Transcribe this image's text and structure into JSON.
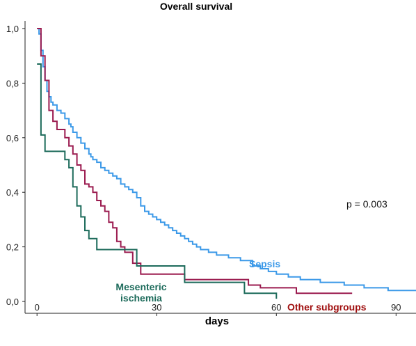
{
  "chart_data": {
    "type": "line",
    "step": true,
    "title": "Overall survival",
    "xlabel": "days",
    "ylabel": "",
    "xlim": [
      -3,
      95
    ],
    "ylim": [
      0,
      1.0
    ],
    "x_ticks": [
      0,
      30,
      60,
      90
    ],
    "x_tick_labels": [
      "0",
      "30",
      "60",
      "90"
    ],
    "y_ticks": [
      0,
      0.2,
      0.4,
      0.6,
      0.8,
      1.0
    ],
    "y_tick_labels": [
      "0,0",
      "0,2",
      "0,4",
      "0,6",
      "0,8",
      "1,0"
    ],
    "grid": false,
    "annotation": "p = 0.003",
    "series": [
      {
        "name": "Sepsis",
        "color": "#3b99e8",
        "label_lines": [
          "Sepsis"
        ],
        "x": [
          0,
          0.5,
          1,
          1.5,
          2,
          2.5,
          3,
          3.5,
          4,
          5,
          6,
          7,
          8,
          8.5,
          9,
          10,
          11,
          12,
          13,
          13.5,
          14,
          15,
          16,
          17,
          18,
          19,
          20,
          21,
          22,
          23,
          24,
          25,
          26,
          27,
          28,
          29,
          30,
          31,
          32,
          33,
          34,
          35,
          36,
          37,
          38,
          39,
          40,
          41,
          43,
          45,
          48,
          51,
          54,
          56,
          58,
          60,
          63,
          66,
          71,
          77,
          82,
          88,
          91,
          95
        ],
        "y": [
          1.0,
          0.98,
          0.92,
          0.86,
          0.81,
          0.77,
          0.75,
          0.73,
          0.72,
          0.7,
          0.69,
          0.67,
          0.65,
          0.64,
          0.62,
          0.6,
          0.58,
          0.56,
          0.54,
          0.53,
          0.52,
          0.51,
          0.49,
          0.48,
          0.47,
          0.46,
          0.45,
          0.43,
          0.42,
          0.41,
          0.4,
          0.38,
          0.35,
          0.33,
          0.32,
          0.31,
          0.3,
          0.29,
          0.28,
          0.27,
          0.26,
          0.25,
          0.24,
          0.23,
          0.22,
          0.21,
          0.2,
          0.19,
          0.18,
          0.17,
          0.16,
          0.15,
          0.13,
          0.12,
          0.11,
          0.1,
          0.09,
          0.08,
          0.07,
          0.06,
          0.05,
          0.04,
          0.04,
          0.04
        ]
      },
      {
        "name": "Other subgroups",
        "color": "#9b1b4f",
        "label_color": "#a01010",
        "label_lines": [
          "Other subgroups"
        ],
        "x": [
          0,
          1,
          2,
          3,
          4,
          5,
          7,
          8,
          9,
          10,
          11,
          12,
          13,
          14,
          15,
          16,
          17,
          18,
          19,
          20,
          21,
          22,
          24,
          26,
          37,
          53,
          56,
          62,
          65,
          79
        ],
        "y": [
          1.0,
          0.9,
          0.81,
          0.7,
          0.66,
          0.63,
          0.6,
          0.57,
          0.54,
          0.5,
          0.48,
          0.43,
          0.42,
          0.4,
          0.37,
          0.35,
          0.33,
          0.29,
          0.27,
          0.22,
          0.2,
          0.18,
          0.14,
          0.1,
          0.08,
          0.06,
          0.05,
          0.05,
          0.03,
          0.03
        ]
      },
      {
        "name": "Mesenteric ischemia",
        "color": "#1d6b5b",
        "label_color": "#1d6b5b",
        "label_lines": [
          "Mesenteric",
          "ischemia"
        ],
        "x": [
          0,
          1,
          2,
          7,
          8,
          9,
          10,
          11,
          12,
          13,
          15,
          25,
          37,
          52,
          60
        ],
        "y": [
          0.87,
          0.61,
          0.55,
          0.52,
          0.49,
          0.42,
          0.35,
          0.31,
          0.26,
          0.23,
          0.19,
          0.13,
          0.07,
          0.03,
          0.01
        ]
      }
    ]
  }
}
